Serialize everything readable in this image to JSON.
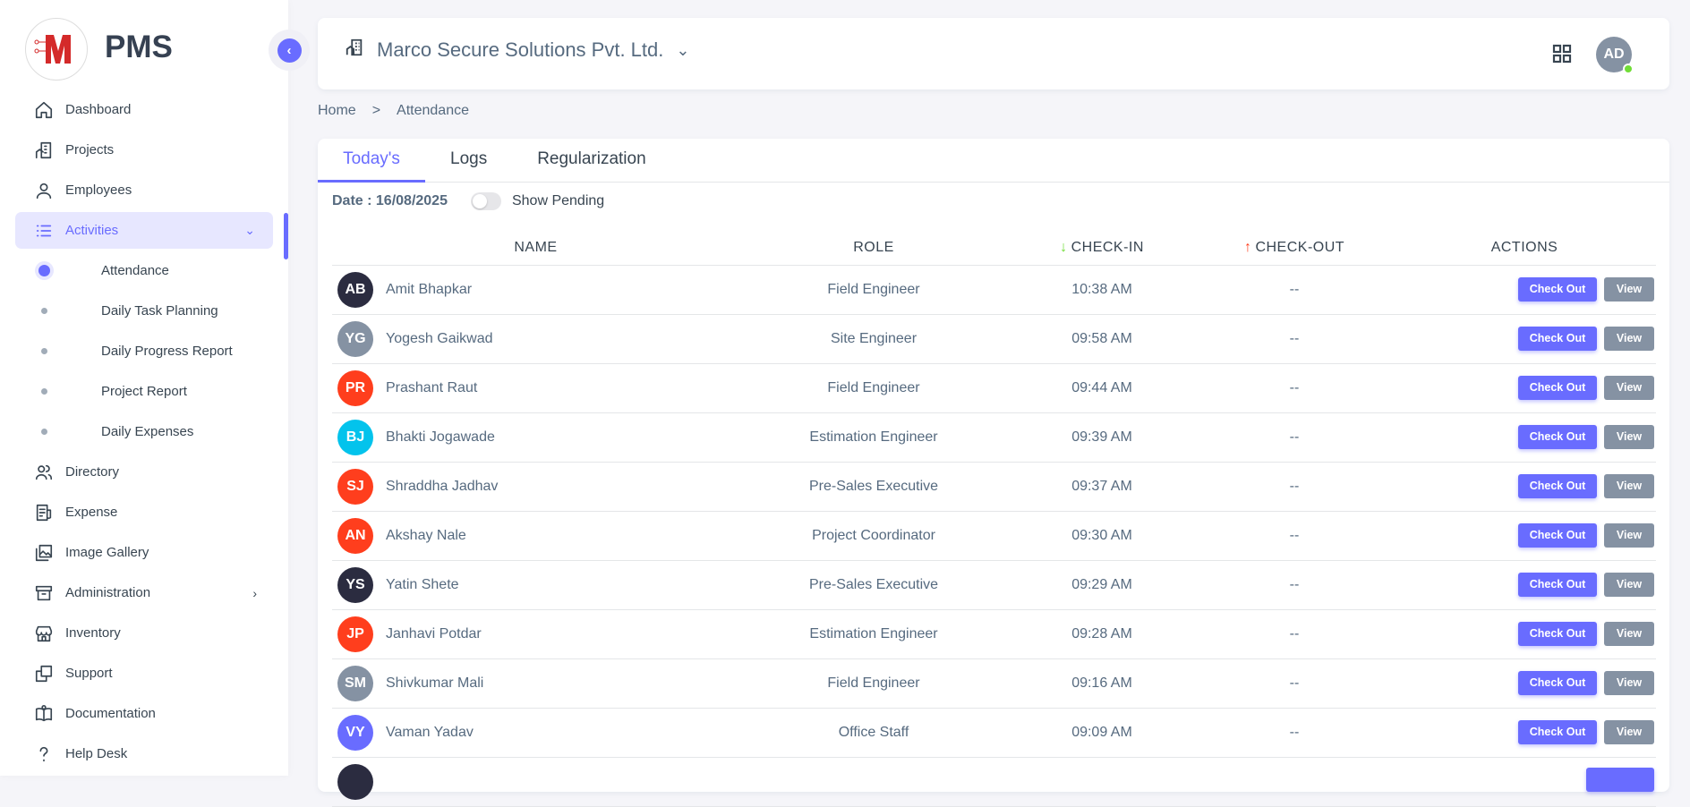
{
  "brand": {
    "name": "PMS",
    "logo_letter": "M",
    "accent": "#696cff"
  },
  "sidebar": {
    "items": [
      {
        "label": "Dashboard",
        "icon": "home-icon"
      },
      {
        "label": "Projects",
        "icon": "building-icon"
      },
      {
        "label": "Employees",
        "icon": "user-icon"
      },
      {
        "label": "Activities",
        "icon": "list-icon",
        "active": true,
        "expanded": true
      },
      {
        "label": "Directory",
        "icon": "users-icon"
      },
      {
        "label": "Expense",
        "icon": "receipt-icon"
      },
      {
        "label": "Image Gallery",
        "icon": "gallery-icon"
      },
      {
        "label": "Administration",
        "icon": "archive-icon",
        "has_children": true
      },
      {
        "label": "Inventory",
        "icon": "store-icon"
      },
      {
        "label": "Support",
        "icon": "copy-icon"
      },
      {
        "label": "Documentation",
        "icon": "book-icon"
      },
      {
        "label": "Help Desk",
        "icon": "question-icon"
      }
    ],
    "subitems": [
      {
        "label": "Attendance",
        "active": true
      },
      {
        "label": "Daily Task Planning"
      },
      {
        "label": "Daily Progress Report"
      },
      {
        "label": "Project Report"
      },
      {
        "label": "Daily Expenses"
      }
    ]
  },
  "header": {
    "company": "Marco Secure Solutions Pvt. Ltd.",
    "user_initials": "AD",
    "status": "online"
  },
  "breadcrumb": {
    "home": "Home",
    "separator": ">",
    "current": "Attendance"
  },
  "tabs": [
    {
      "label": "Today's",
      "active": true
    },
    {
      "label": "Logs"
    },
    {
      "label": "Regularization"
    }
  ],
  "filters": {
    "date": "Date : 16/08/2025",
    "show_pending_label": "Show Pending",
    "show_pending": false
  },
  "table": {
    "columns": {
      "name": "NAME",
      "role": "ROLE",
      "checkin": "CHECK-IN",
      "checkout": "CHECK-OUT",
      "actions": "ACTIONS"
    },
    "checkout_label": "Check Out",
    "view_label": "View",
    "rows": [
      {
        "initials": "AB",
        "name": "Amit Bhapkar",
        "role": "Field Engineer",
        "checkin": "10:38 AM",
        "checkout": "--",
        "color": "#2b2c40"
      },
      {
        "initials": "YG",
        "name": "Yogesh Gaikwad",
        "role": "Site Engineer",
        "checkin": "09:58 AM",
        "checkout": "--",
        "color": "#8592a3"
      },
      {
        "initials": "PR",
        "name": "Prashant Raut",
        "role": "Field Engineer",
        "checkin": "09:44 AM",
        "checkout": "--",
        "color": "#ff3e1d"
      },
      {
        "initials": "BJ",
        "name": "Bhakti Jogawade",
        "role": "Estimation Engineer",
        "checkin": "09:39 AM",
        "checkout": "--",
        "color": "#03c3ec"
      },
      {
        "initials": "SJ",
        "name": "Shraddha Jadhav",
        "role": "Pre-Sales Executive",
        "checkin": "09:37 AM",
        "checkout": "--",
        "color": "#ff3e1d"
      },
      {
        "initials": "AN",
        "name": "Akshay Nale",
        "role": "Project Coordinator",
        "checkin": "09:30 AM",
        "checkout": "--",
        "color": "#ff3e1d"
      },
      {
        "initials": "YS",
        "name": "Yatin Shete",
        "role": "Pre-Sales Executive",
        "checkin": "09:29 AM",
        "checkout": "--",
        "color": "#2b2c40"
      },
      {
        "initials": "JP",
        "name": "Janhavi Potdar",
        "role": "Estimation Engineer",
        "checkin": "09:28 AM",
        "checkout": "--",
        "color": "#ff3e1d"
      },
      {
        "initials": "SM",
        "name": "Shivkumar Mali",
        "role": "Field Engineer",
        "checkin": "09:16 AM",
        "checkout": "--",
        "color": "#8592a3"
      },
      {
        "initials": "VY",
        "name": "Vaman Yadav",
        "role": "Office Staff",
        "checkin": "09:09 AM",
        "checkout": "--",
        "color": "#696cff"
      }
    ]
  }
}
